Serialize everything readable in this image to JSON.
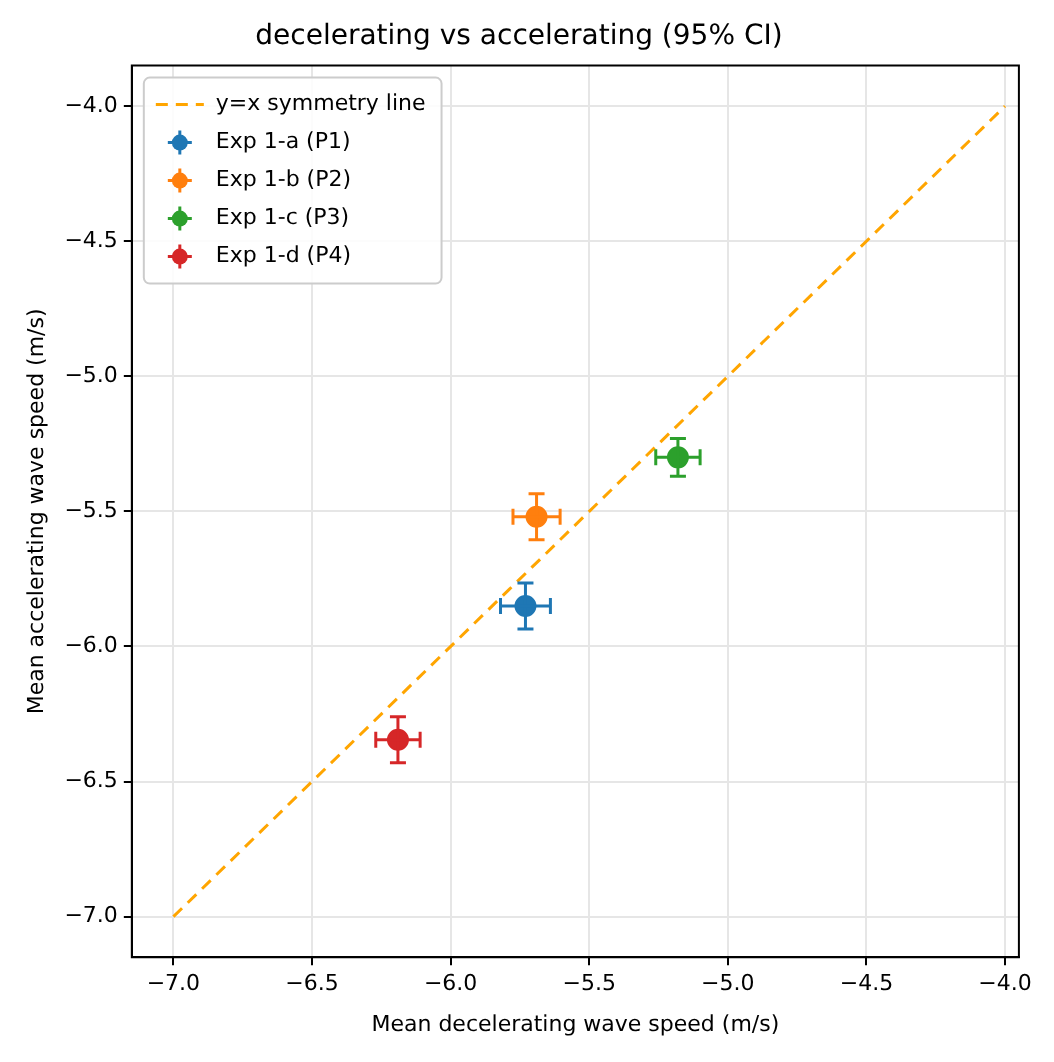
{
  "chart_data": {
    "type": "scatter",
    "title": "decelerating vs accelerating (95% CI)",
    "xlabel": "Mean decelerating wave speed (m/s)",
    "ylabel": "Mean accelerating wave speed (m/s)",
    "series": [
      {
        "name": "y=x symmetry line",
        "type": "line",
        "color": "#ffa500",
        "line_style": "dashed",
        "marker": "none",
        "x": [
          -7.0,
          -4.0
        ],
        "values": [
          -7.0,
          -4.0
        ]
      },
      {
        "name": "Exp 1-a (P1)",
        "color": "#1f77b4",
        "x": [
          -5.73
        ],
        "values": [
          -5.85
        ],
        "xerrors": [
          0.09
        ],
        "errors": [
          0.085
        ]
      },
      {
        "name": "Exp 1-b (P2)",
        "color": "#ff7f0e",
        "x": [
          -5.69
        ],
        "values": [
          -5.52
        ],
        "xerrors": [
          0.085
        ],
        "errors": [
          0.085
        ]
      },
      {
        "name": "Exp 1-c (P3)",
        "color": "#2ca02c",
        "x": [
          -5.18
        ],
        "values": [
          -5.3
        ],
        "xerrors": [
          0.08
        ],
        "errors": [
          0.07
        ]
      },
      {
        "name": "Exp 1-d (P4)",
        "color": "#d62728",
        "x": [
          -6.19
        ],
        "values": [
          -6.345
        ],
        "xerrors": [
          0.08
        ],
        "errors": [
          0.085
        ]
      }
    ],
    "marker": "circle",
    "xlim": [
      -7.15,
      -3.95
    ],
    "ylim": [
      -7.15,
      -3.85
    ],
    "xticks": [
      {
        "value": -7,
        "label": "−7.0"
      },
      {
        "value": -6.5,
        "label": "−6.5"
      },
      {
        "value": -6,
        "label": "−6.0"
      },
      {
        "value": -5.5,
        "label": "−5.5"
      },
      {
        "value": -5,
        "label": "−5.0"
      },
      {
        "value": -4.5,
        "label": "−4.5"
      },
      {
        "value": -4,
        "label": "−4.0"
      }
    ],
    "yticks": [
      {
        "value": -7,
        "label": "−7.0"
      },
      {
        "value": -6.5,
        "label": "−6.5"
      },
      {
        "value": -6,
        "label": "−6.0"
      },
      {
        "value": -5.5,
        "label": "−5.5"
      },
      {
        "value": -5,
        "label": "−5.0"
      },
      {
        "value": -4.5,
        "label": "−4.5"
      },
      {
        "value": -4,
        "label": "−4.0"
      }
    ],
    "grid": true,
    "legend": "top left"
  }
}
